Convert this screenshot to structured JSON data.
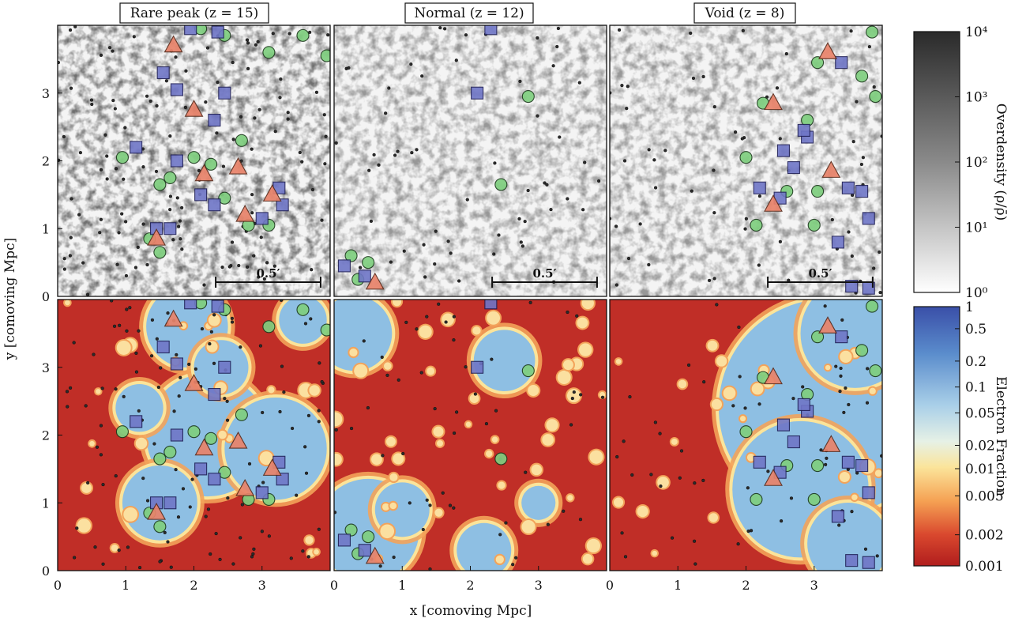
{
  "figure": {
    "panels": [
      {
        "title": "Rare peak (z = 15)",
        "scale_label": "0.5′"
      },
      {
        "title": "Normal (z = 12)",
        "scale_label": "0.5′"
      },
      {
        "title": "Void (z = 8)",
        "scale_label": "0.5′"
      }
    ],
    "xlabel": "x [comoving Mpc]",
    "ylabel": "y [comoving Mpc]",
    "overdensity_colorbar": {
      "label": "Overdensity (ρ/ρ̄)",
      "ticks": [
        "10⁴",
        "10³",
        "10²",
        "10¹",
        "10⁰"
      ],
      "colors": [
        "#2a2a2a",
        "#ffffff"
      ]
    },
    "electron_colorbar": {
      "label": "Electron Fraction",
      "ticks": [
        "1",
        "0.5",
        "0.2",
        "0.1",
        "0.05",
        "0.02",
        "0.01",
        "0.005",
        "0.002",
        "0.001"
      ],
      "colors": [
        "#3a5ca8",
        "#7fb0dc",
        "#cfe4f0",
        "#fbe9a8",
        "#f6a45a",
        "#c8302a",
        "#b22222"
      ]
    },
    "colors": {
      "ionized": "#8ebfe3",
      "neutral": "#c02e27",
      "circle_fill": "#7fcf7f",
      "square_fill": "#6f76c7",
      "triangle_fill": "#e9836a"
    }
  },
  "chart_data": [
    {
      "type": "heatmap",
      "panel": "Rare peak (z = 15)",
      "quantity": "Overdensity",
      "xlim": [
        0,
        4
      ],
      "ylim": [
        0,
        4
      ],
      "x_ticks": [],
      "y_ticks": [
        "0",
        "1",
        "2",
        "3"
      ],
      "x": [
        0,
        1,
        2,
        3
      ],
      "y": [
        0,
        1,
        2,
        3
      ]
    },
    {
      "type": "heatmap",
      "panel": "Normal (z = 12)",
      "quantity": "Overdensity",
      "xlim": [
        0,
        4
      ],
      "ylim": [
        0,
        4
      ]
    },
    {
      "type": "heatmap",
      "panel": "Void (z = 8)",
      "quantity": "Overdensity",
      "xlim": [
        0,
        4
      ],
      "ylim": [
        0,
        4
      ]
    },
    {
      "type": "heatmap",
      "panel": "Rare peak (z = 15)",
      "quantity": "Electron Fraction",
      "xlim": [
        0,
        4
      ],
      "ylim": [
        0,
        4
      ],
      "x_ticks": [
        "0",
        "1",
        "2",
        "3"
      ],
      "y_ticks": [
        "0",
        "1",
        "2",
        "3"
      ]
    },
    {
      "type": "heatmap",
      "panel": "Normal (z = 12)",
      "quantity": "Electron Fraction",
      "xlim": [
        0,
        4
      ],
      "ylim": [
        0,
        4
      ],
      "x_ticks": [
        "0",
        "1",
        "2",
        "3"
      ]
    },
    {
      "type": "heatmap",
      "panel": "Void (z = 8)",
      "quantity": "Electron Fraction",
      "xlim": [
        0,
        4
      ],
      "ylim": [
        0,
        4
      ],
      "x_ticks": [
        "0",
        "1",
        "2",
        "3"
      ]
    }
  ],
  "markers": {
    "panel0": {
      "triangles": [
        [
          1.7,
          3.7
        ],
        [
          2.0,
          2.75
        ],
        [
          2.15,
          1.8
        ],
        [
          2.65,
          1.9
        ],
        [
          3.15,
          1.5
        ],
        [
          2.75,
          1.2
        ],
        [
          1.45,
          0.85
        ]
      ],
      "squares": [
        [
          1.95,
          3.95
        ],
        [
          2.35,
          3.9
        ],
        [
          1.55,
          3.3
        ],
        [
          1.75,
          3.05
        ],
        [
          2.45,
          3.0
        ],
        [
          2.3,
          2.6
        ],
        [
          1.15,
          2.2
        ],
        [
          1.75,
          2.0
        ],
        [
          2.1,
          1.5
        ],
        [
          2.3,
          1.35
        ],
        [
          3.0,
          1.15
        ],
        [
          3.3,
          1.35
        ],
        [
          1.45,
          1.0
        ],
        [
          1.65,
          1.0
        ],
        [
          3.25,
          1.6
        ]
      ],
      "circles": [
        [
          0.95,
          2.05
        ],
        [
          2.0,
          2.05
        ],
        [
          1.65,
          1.75
        ],
        [
          2.25,
          1.95
        ],
        [
          2.45,
          1.45
        ],
        [
          2.8,
          1.05
        ],
        [
          3.1,
          1.05
        ],
        [
          1.5,
          0.65
        ],
        [
          2.45,
          3.85
        ],
        [
          2.1,
          3.95
        ],
        [
          1.5,
          1.65
        ],
        [
          1.35,
          0.85
        ],
        [
          3.6,
          3.85
        ],
        [
          3.95,
          3.55
        ],
        [
          3.1,
          3.6
        ],
        [
          2.7,
          2.3
        ]
      ],
      "dots": 120
    },
    "panel1": {
      "triangles": [
        [
          0.6,
          0.2
        ]
      ],
      "squares": [
        [
          2.3,
          3.95
        ],
        [
          2.1,
          3.0
        ],
        [
          0.15,
          0.45
        ],
        [
          0.45,
          0.3
        ]
      ],
      "circles": [
        [
          0.25,
          0.6
        ],
        [
          0.5,
          0.5
        ],
        [
          2.45,
          1.65
        ],
        [
          2.85,
          2.95
        ],
        [
          0.35,
          0.25
        ]
      ],
      "dots": 55
    },
    "panel2": {
      "triangles": [
        [
          3.2,
          3.6
        ],
        [
          2.4,
          2.85
        ],
        [
          3.25,
          1.85
        ],
        [
          2.4,
          1.35
        ]
      ],
      "squares": [
        [
          3.4,
          3.45
        ],
        [
          2.9,
          2.35
        ],
        [
          2.55,
          2.15
        ],
        [
          2.85,
          2.45
        ],
        [
          2.7,
          1.9
        ],
        [
          2.2,
          1.6
        ],
        [
          2.5,
          1.45
        ],
        [
          3.5,
          1.6
        ],
        [
          3.7,
          1.55
        ],
        [
          3.8,
          1.15
        ],
        [
          3.35,
          0.8
        ],
        [
          3.55,
          0.15
        ],
        [
          3.8,
          0.12
        ]
      ],
      "circles": [
        [
          3.85,
          3.9
        ],
        [
          3.05,
          3.45
        ],
        [
          3.7,
          3.25
        ],
        [
          3.9,
          2.95
        ],
        [
          2.25,
          2.85
        ],
        [
          2.9,
          2.6
        ],
        [
          2.0,
          2.05
        ],
        [
          3.05,
          1.55
        ],
        [
          2.15,
          1.05
        ],
        [
          2.6,
          1.55
        ],
        [
          3.0,
          1.05
        ]
      ],
      "dots": 60
    }
  }
}
